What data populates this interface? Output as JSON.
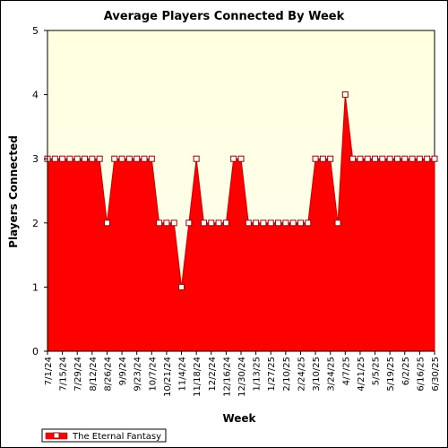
{
  "chart_data": {
    "type": "area",
    "title": "Average Players Connected By Week",
    "xlabel": "Week",
    "ylabel": "Players Connected",
    "ylim": [
      0,
      5
    ],
    "yticks": [
      "0",
      "1",
      "2",
      "3",
      "4",
      "5"
    ],
    "grid": false,
    "legend_position": "bottom-left",
    "x": [
      "7/1/24",
      "7/8/24",
      "7/15/24",
      "7/22/24",
      "7/29/24",
      "8/5/24",
      "8/12/24",
      "8/19/24",
      "8/26/24",
      "9/2/24",
      "9/9/24",
      "9/16/24",
      "9/23/24",
      "9/30/24",
      "10/7/24",
      "10/14/24",
      "10/21/24",
      "10/28/24",
      "11/4/24",
      "11/11/24",
      "11/18/24",
      "11/25/24",
      "12/2/24",
      "12/9/24",
      "12/16/24",
      "12/23/24",
      "12/30/24",
      "1/6/25",
      "1/13/25",
      "1/20/25",
      "1/27/25",
      "2/3/25",
      "2/10/25",
      "2/17/25",
      "2/24/25",
      "3/3/25",
      "3/10/25",
      "3/17/25",
      "3/24/25",
      "3/31/25",
      "4/7/25",
      "4/14/25",
      "4/21/25",
      "4/28/25",
      "5/5/25",
      "5/12/25",
      "5/19/25",
      "5/26/25",
      "6/2/25",
      "6/9/25",
      "6/16/25",
      "6/23/25",
      "6/30/25"
    ],
    "x_tick_labels": [
      "7/1/24",
      "7/15/24",
      "7/29/24",
      "8/12/24",
      "8/26/24",
      "9/9/24",
      "9/23/24",
      "10/7/24",
      "10/21/24",
      "11/4/24",
      "11/18/24",
      "12/2/24",
      "12/16/24",
      "12/30/24",
      "1/13/25",
      "1/27/25",
      "2/10/25",
      "2/24/25",
      "3/10/25",
      "3/24/25",
      "4/7/25",
      "4/21/25",
      "5/5/25",
      "5/19/25",
      "6/2/25",
      "6/16/25",
      "6/30/25"
    ],
    "series": [
      {
        "name": "The Eternal Fantasy",
        "color": "#ff0000",
        "values": [
          3,
          3,
          3,
          3,
          3,
          3,
          3,
          3,
          2,
          3,
          3,
          3,
          3,
          3,
          3,
          2,
          2,
          2,
          1,
          2,
          3,
          2,
          2,
          2,
          2,
          3,
          3,
          2,
          2,
          2,
          2,
          2,
          2,
          2,
          2,
          2,
          3,
          3,
          3,
          2,
          4,
          3,
          3,
          3,
          3,
          3,
          3,
          3,
          3,
          3,
          3,
          3,
          3
        ]
      }
    ],
    "colors": {
      "plot_background": "#ffffe0",
      "area_fill": "#ff0000",
      "area_line": "#cc0000",
      "marker_fill": "#ffffff",
      "marker_stroke": "#990000"
    }
  }
}
